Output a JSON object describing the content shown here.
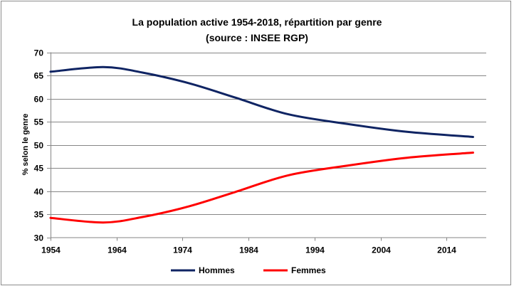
{
  "chart_data": {
    "type": "line",
    "title": "La population active 1954-2018, répartition par genre",
    "subtitle": "(source : INSEE RGP)",
    "xlabel": "",
    "ylabel": "% selon le genre",
    "xlim": [
      1954,
      2020
    ],
    "ylim": [
      30,
      70
    ],
    "xticks": [
      1954,
      1964,
      1974,
      1984,
      1994,
      2004,
      2014
    ],
    "yticks": [
      30,
      35,
      40,
      45,
      50,
      55,
      60,
      65,
      70
    ],
    "grid": "horizontal",
    "legend_position": "bottom",
    "x": [
      1954,
      1962,
      1968,
      1975,
      1982,
      1990,
      1999,
      2008,
      2018
    ],
    "series": [
      {
        "name": "Hommes",
        "color": "#0f2463",
        "values": [
          65.8,
          66.8,
          65.6,
          63.3,
          60.2,
          56.6,
          54.5,
          52.8,
          51.7
        ]
      },
      {
        "name": "Femmes",
        "color": "#ff0000",
        "values": [
          34.2,
          33.2,
          34.4,
          36.7,
          39.8,
          43.4,
          45.5,
          47.2,
          48.3
        ]
      }
    ]
  }
}
